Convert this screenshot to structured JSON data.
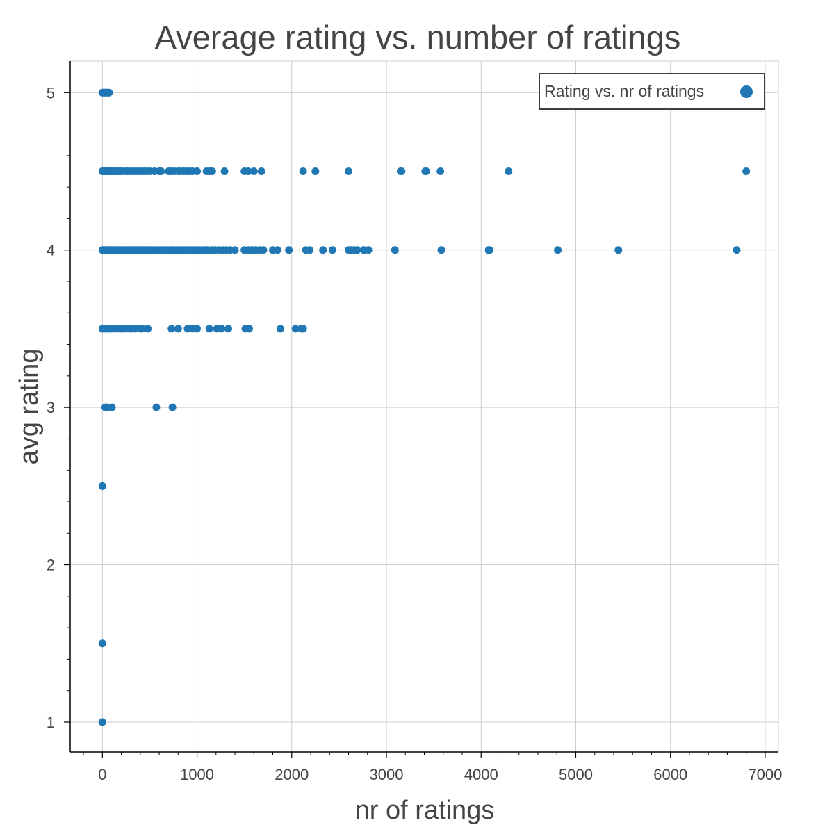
{
  "chart_data": {
    "type": "scatter",
    "title": "Average rating vs. number of ratings",
    "xlabel": "nr of ratings",
    "ylabel": "avg rating",
    "xlim": [
      -340,
      7140
    ],
    "ylim": [
      0.81,
      5.2
    ],
    "grid": true,
    "legend_position": "top-right",
    "color": "#1f77b4",
    "x_ticks": [
      0,
      1000,
      2000,
      3000,
      4000,
      5000,
      6000,
      7000
    ],
    "x_tick_labels": [
      "0",
      "1000",
      "2000",
      "3000",
      "4000",
      "5000",
      "6000",
      "7000"
    ],
    "y_ticks": [
      1,
      2,
      3,
      4,
      5
    ],
    "y_tick_labels": [
      "1",
      "2",
      "3",
      "4",
      "5"
    ],
    "series": [
      {
        "name": "Rating vs. nr of ratings",
        "points": [
          [
            0,
            5
          ],
          [
            10,
            5
          ],
          [
            20,
            5
          ],
          [
            30,
            5
          ],
          [
            40,
            5
          ],
          [
            50,
            5
          ],
          [
            60,
            5
          ],
          [
            70,
            5
          ],
          [
            0,
            4.5
          ],
          [
            10,
            4.5
          ],
          [
            25,
            4.5
          ],
          [
            40,
            4.5
          ],
          [
            55,
            4.5
          ],
          [
            70,
            4.5
          ],
          [
            85,
            4.5
          ],
          [
            100,
            4.5
          ],
          [
            120,
            4.5
          ],
          [
            140,
            4.5
          ],
          [
            160,
            4.5
          ],
          [
            180,
            4.5
          ],
          [
            200,
            4.5
          ],
          [
            230,
            4.5
          ],
          [
            260,
            4.5
          ],
          [
            290,
            4.5
          ],
          [
            320,
            4.5
          ],
          [
            350,
            4.5
          ],
          [
            380,
            4.5
          ],
          [
            410,
            4.5
          ],
          [
            440,
            4.5
          ],
          [
            470,
            4.5
          ],
          [
            500,
            4.5
          ],
          [
            550,
            4.5
          ],
          [
            600,
            4.5
          ],
          [
            620,
            4.5
          ],
          [
            700,
            4.5
          ],
          [
            730,
            4.5
          ],
          [
            760,
            4.5
          ],
          [
            800,
            4.5
          ],
          [
            830,
            4.5
          ],
          [
            860,
            4.5
          ],
          [
            890,
            4.5
          ],
          [
            920,
            4.5
          ],
          [
            950,
            4.5
          ],
          [
            1000,
            4.5
          ],
          [
            1100,
            4.5
          ],
          [
            1130,
            4.5
          ],
          [
            1160,
            4.5
          ],
          [
            1290,
            4.5
          ],
          [
            1500,
            4.5
          ],
          [
            1540,
            4.5
          ],
          [
            1600,
            4.5
          ],
          [
            1680,
            4.5
          ],
          [
            2120,
            4.5
          ],
          [
            2250,
            4.5
          ],
          [
            2600,
            4.5
          ],
          [
            3150,
            4.5
          ],
          [
            3160,
            4.5
          ],
          [
            3410,
            4.5
          ],
          [
            3420,
            4.5
          ],
          [
            3570,
            4.5
          ],
          [
            4290,
            4.5
          ],
          [
            6800,
            4.5
          ],
          [
            0,
            4
          ],
          [
            15,
            4
          ],
          [
            30,
            4
          ],
          [
            45,
            4
          ],
          [
            60,
            4
          ],
          [
            75,
            4
          ],
          [
            90,
            4
          ],
          [
            110,
            4
          ],
          [
            130,
            4
          ],
          [
            150,
            4
          ],
          [
            170,
            4
          ],
          [
            190,
            4
          ],
          [
            210,
            4
          ],
          [
            230,
            4
          ],
          [
            250,
            4
          ],
          [
            270,
            4
          ],
          [
            290,
            4
          ],
          [
            310,
            4
          ],
          [
            330,
            4
          ],
          [
            350,
            4
          ],
          [
            370,
            4
          ],
          [
            390,
            4
          ],
          [
            410,
            4
          ],
          [
            430,
            4
          ],
          [
            450,
            4
          ],
          [
            480,
            4
          ],
          [
            510,
            4
          ],
          [
            540,
            4
          ],
          [
            570,
            4
          ],
          [
            600,
            4
          ],
          [
            630,
            4
          ],
          [
            660,
            4
          ],
          [
            690,
            4
          ],
          [
            720,
            4
          ],
          [
            750,
            4
          ],
          [
            780,
            4
          ],
          [
            810,
            4
          ],
          [
            840,
            4
          ],
          [
            870,
            4
          ],
          [
            900,
            4
          ],
          [
            930,
            4
          ],
          [
            960,
            4
          ],
          [
            990,
            4
          ],
          [
            1020,
            4
          ],
          [
            1050,
            4
          ],
          [
            1080,
            4
          ],
          [
            1110,
            4
          ],
          [
            1150,
            4
          ],
          [
            1190,
            4
          ],
          [
            1230,
            4
          ],
          [
            1270,
            4
          ],
          [
            1310,
            4
          ],
          [
            1350,
            4
          ],
          [
            1400,
            4
          ],
          [
            1500,
            4
          ],
          [
            1540,
            4
          ],
          [
            1580,
            4
          ],
          [
            1620,
            4
          ],
          [
            1660,
            4
          ],
          [
            1700,
            4
          ],
          [
            1800,
            4
          ],
          [
            1850,
            4
          ],
          [
            1970,
            4
          ],
          [
            2150,
            4
          ],
          [
            2190,
            4
          ],
          [
            2330,
            4
          ],
          [
            2430,
            4
          ],
          [
            2600,
            4
          ],
          [
            2630,
            4
          ],
          [
            2660,
            4
          ],
          [
            2690,
            4
          ],
          [
            2760,
            4
          ],
          [
            2810,
            4
          ],
          [
            3090,
            4
          ],
          [
            3580,
            4
          ],
          [
            4080,
            4
          ],
          [
            4090,
            4
          ],
          [
            4810,
            4
          ],
          [
            5450,
            4
          ],
          [
            6700,
            4
          ],
          [
            0,
            3.5
          ],
          [
            20,
            3.5
          ],
          [
            40,
            3.5
          ],
          [
            60,
            3.5
          ],
          [
            80,
            3.5
          ],
          [
            100,
            3.5
          ],
          [
            130,
            3.5
          ],
          [
            160,
            3.5
          ],
          [
            190,
            3.5
          ],
          [
            220,
            3.5
          ],
          [
            250,
            3.5
          ],
          [
            290,
            3.5
          ],
          [
            320,
            3.5
          ],
          [
            350,
            3.5
          ],
          [
            400,
            3.5
          ],
          [
            420,
            3.5
          ],
          [
            480,
            3.5
          ],
          [
            730,
            3.5
          ],
          [
            800,
            3.5
          ],
          [
            900,
            3.5
          ],
          [
            950,
            3.5
          ],
          [
            1000,
            3.5
          ],
          [
            1130,
            3.5
          ],
          [
            1210,
            3.5
          ],
          [
            1260,
            3.5
          ],
          [
            1330,
            3.5
          ],
          [
            1510,
            3.5
          ],
          [
            1550,
            3.5
          ],
          [
            1880,
            3.5
          ],
          [
            2040,
            3.5
          ],
          [
            2100,
            3.5
          ],
          [
            2120,
            3.5
          ],
          [
            30,
            3
          ],
          [
            50,
            3
          ],
          [
            100,
            3
          ],
          [
            570,
            3
          ],
          [
            740,
            3
          ],
          [
            0,
            2.5
          ],
          [
            0,
            1.5
          ],
          [
            0,
            1
          ]
        ]
      }
    ]
  }
}
